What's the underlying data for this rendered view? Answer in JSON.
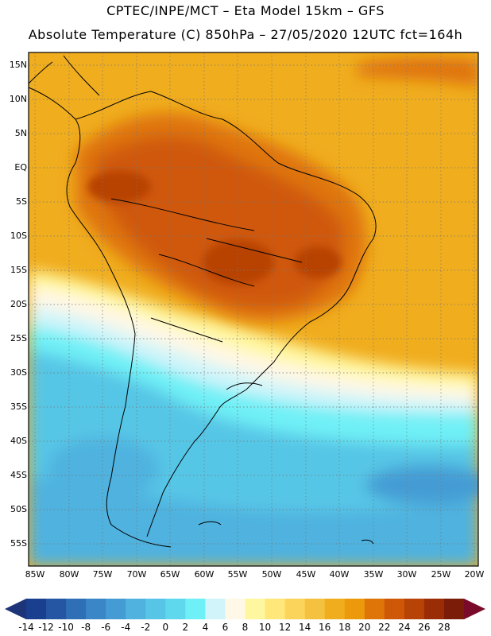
{
  "header": {
    "line1": "CPTEC/INPE/MCT –  Eta Model 15km – GFS",
    "line2": "Absolute Temperature (C) 850hPa – 27/05/2020 12UTC fct=164h"
  },
  "map": {
    "lat_labels": [
      "15N",
      "10N",
      "5N",
      "EQ",
      "5S",
      "10S",
      "15S",
      "20S",
      "25S",
      "30S",
      "35S",
      "40S",
      "45S",
      "50S",
      "55S"
    ],
    "lon_labels": [
      "85W",
      "80W",
      "75W",
      "70W",
      "65W",
      "60W",
      "55W",
      "50W",
      "45W",
      "40W",
      "35W",
      "30W",
      "25W",
      "20W"
    ]
  },
  "colorbar": {
    "ticks": [
      "-14",
      "-12",
      "-10",
      "-8",
      "-6",
      "-4",
      "-2",
      "0",
      "2",
      "4",
      "6",
      "8",
      "10",
      "12",
      "14",
      "16",
      "18",
      "20",
      "22",
      "24",
      "26",
      "28"
    ],
    "colors": [
      "#1a3f8e",
      "#2556a3",
      "#2f6fb6",
      "#3a86c6",
      "#459cd4",
      "#4fb2df",
      "#57c6e6",
      "#5fd8ee",
      "#6ff0f6",
      "#d0f4fa",
      "#fff8e6",
      "#fff7a0",
      "#ffe77a",
      "#fbd55b",
      "#f5c23f",
      "#f0ad1e",
      "#ec9a0c",
      "#df7408",
      "#cf5808",
      "#b84306",
      "#9a2d06",
      "#7b1c08"
    ],
    "end_low": "#1d3478",
    "end_high": "#7a0a2a"
  }
}
